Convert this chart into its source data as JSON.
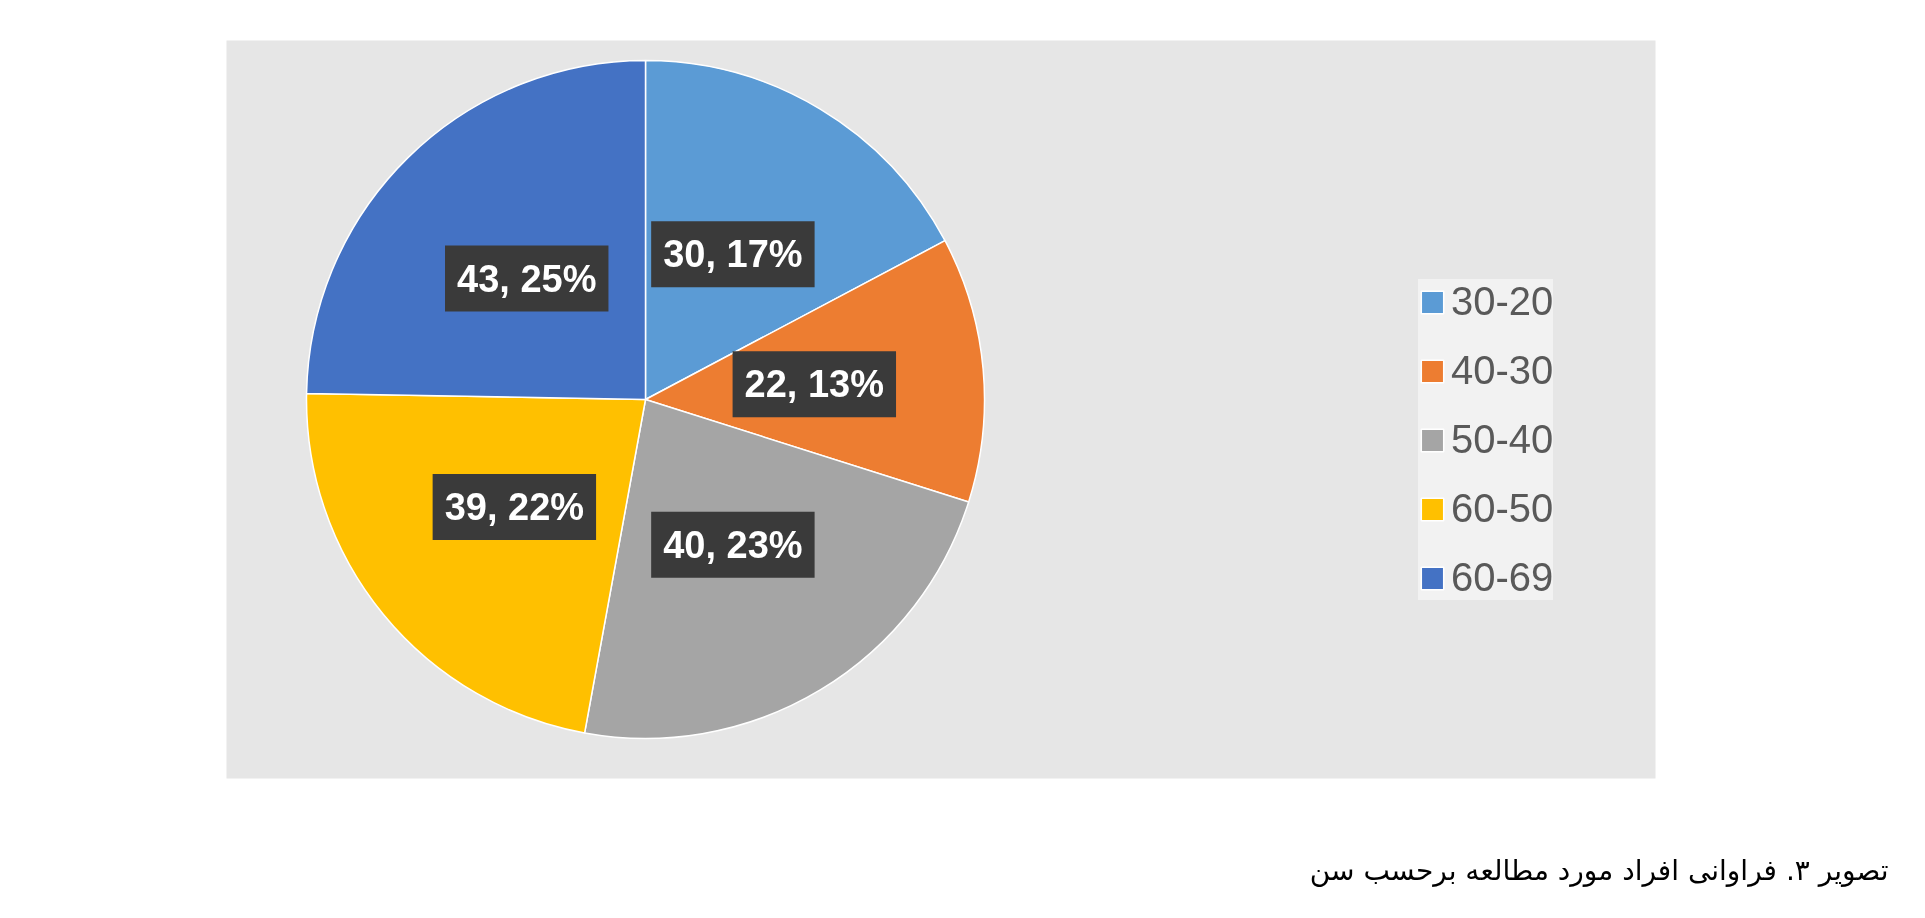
{
  "chart_data": {
    "type": "pie",
    "categories": [
      "30-20",
      "40-30",
      "50-40",
      "60-50",
      "60-69"
    ],
    "values": [
      30,
      22,
      40,
      39,
      43
    ],
    "colors": [
      "#5b9bd5",
      "#ed7d31",
      "#a5a5a5",
      "#ffc000",
      "#4472c4"
    ],
    "value_labels": [
      "30, 17%",
      "22, 13%",
      "40, 23%",
      "39, 22%",
      "43, 25%"
    ],
    "legend": "right",
    "annotations": [
      "تصویر ۳. فراوانی افراد مورد مطالعه برحسب سن"
    ]
  }
}
